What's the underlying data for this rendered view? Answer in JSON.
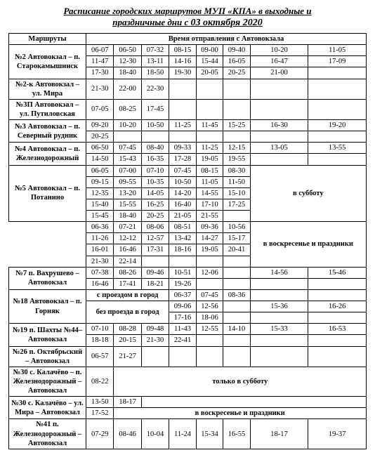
{
  "title_line1": "Расписание городских маршрутов МУП «КПА» в выходные и",
  "title_line2": "праздничные дни с ",
  "title_date": "03 октября 2020",
  "header_routes": "Маршруты",
  "header_times": "Время отправления с Автовокзала",
  "r2_name": "№2 Автовокзал – п. Старокамышинск",
  "r2_r1": [
    "06-07",
    "06-50",
    "07-32",
    "08-15",
    "09-00",
    "09-40",
    "10-20",
    "11-05"
  ],
  "r2_r2": [
    "11-47",
    "12-30",
    "13-11",
    "14-16",
    "15-44",
    "16-05",
    "16-47",
    "17-09"
  ],
  "r2_r3": [
    "17-30",
    "18-40",
    "18-50",
    "19-30",
    "20-05",
    "20-25",
    "21-00"
  ],
  "r2k_name": "№2-к Автовокзал – ул. Мира",
  "r2k_r1": [
    "21-30",
    "22-00",
    "22-30"
  ],
  "r3p_name": "№3П Автовокзал – ул. Путиловская",
  "r3p_r1": [
    "07-05",
    "08-25",
    "17-45"
  ],
  "r3_name": "№3 Автовокзал – п. Северный рудник",
  "r3_r1": [
    "09-20",
    "10-20",
    "10-50",
    "11-25",
    "11-45",
    "15-25",
    "16-30",
    "19-20"
  ],
  "r3_r2": [
    "20-25"
  ],
  "r4_name": "№4 Автовокзал – п. Железнодорожный",
  "r4_r1": [
    "06-50",
    "07-45",
    "08-40",
    "09-33",
    "11-25",
    "12-15",
    "13-05",
    "13-55"
  ],
  "r4_r2": [
    "14-50",
    "15-43",
    "16-35",
    "17-28",
    "19-05",
    "19-55"
  ],
  "r5_name": "№5 Автовокзал – п. Потанино",
  "r5a_r1": [
    "06-05",
    "07-00",
    "07-10",
    "07-45",
    "08-15",
    "08-30"
  ],
  "r5a_r2": [
    "09-15",
    "09-55",
    "10-35",
    "10-50",
    "11-05",
    "11-50"
  ],
  "r5a_r3": [
    "12-35",
    "13-20",
    "14-05",
    "14-20",
    "14-55",
    "15-10"
  ],
  "r5a_r4": [
    "15-40",
    "15-55",
    "16-25",
    "16-40",
    "17-10",
    "17-25"
  ],
  "r5a_r5": [
    "15-45",
    "18-40",
    "20-25",
    "21-05",
    "21-55"
  ],
  "r5a_note": "в субботу",
  "r5b_r1": [
    "06-36",
    "07-21",
    "08-06",
    "08-51",
    "09-36",
    "10-56"
  ],
  "r5b_r2": [
    "11-26",
    "12-12",
    "12-57",
    "13-42",
    "14-27",
    "15-17"
  ],
  "r5b_r3": [
    "16-01",
    "16-46",
    "17-31",
    "18-16",
    "19-05",
    "20-41"
  ],
  "r5b_r4": [
    "21-30",
    "22-14"
  ],
  "r5b_note": "в воскресенье и праздники",
  "r7_name": "№7 п. Вахрушево – Автовокзал",
  "r7_r1": [
    "07-38",
    "08-26",
    "09-46",
    "10-51",
    "12-06",
    "",
    "14-56",
    "15-46"
  ],
  "r7_r2": [
    "16-46",
    "17-41",
    "18-21",
    "19-26"
  ],
  "r18_name": "№18 Автовокзал – п. Горняк",
  "r18_n1": "с проездом в город",
  "r18_r1": [
    "06-37",
    "07-45",
    "08-36"
  ],
  "r18_n2": "без проезда в город",
  "r18_r2_a": [
    "09-06",
    "12-56"
  ],
  "r18_r2_b": [
    "15-36",
    "16-26"
  ],
  "r18_r3": [
    "17-16",
    "18-06"
  ],
  "r19_name": "№19 п. Шахты №44– Автовокзал",
  "r19_r1": [
    "07-10",
    "08-28",
    "09-48",
    "11-43",
    "12-55",
    "14-10",
    "15-33",
    "16-53"
  ],
  "r19_r2": [
    "18-18",
    "20-15",
    "21-30",
    "22-41"
  ],
  "r26_name": "№26 п. Октябрьский – Автовокзал",
  "r26_r1": [
    "06-57",
    "21-27"
  ],
  "r30a_name": "№30 с. Калачёво – п. Железнодорожный – Автовокзал",
  "r30a_r1": "08-22",
  "r30a_note": "только в субботу",
  "r30b_name": "№30 с. Калачёво – ул. Мира – Автовокзал",
  "r30b_r1": [
    "13-50",
    "18-17"
  ],
  "r30b_r2": "17-52",
  "r30b_note": "в воскресенье и праздники",
  "r41_name": "№41 п. Железнодорожный – Автовокзал",
  "r41_r1": [
    "07-29",
    "08-46",
    "10-04",
    "11-24",
    "15-34",
    "16-55",
    "18-17",
    "19-37"
  ]
}
